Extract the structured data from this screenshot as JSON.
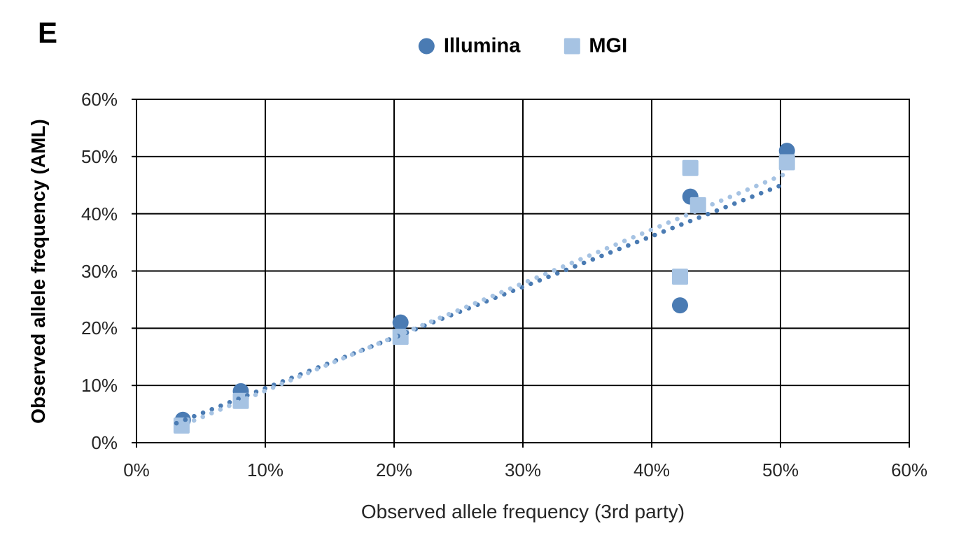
{
  "panel_label": "E",
  "colors": {
    "illumina": "#4a7bb3",
    "mgi": "#a6c3e3",
    "grid": "#000000",
    "tick_text": "#262626"
  },
  "legend": {
    "items": [
      {
        "label": "Illumina",
        "marker": "circle",
        "color": "#4a7bb3"
      },
      {
        "label": "MGI",
        "marker": "square",
        "color": "#a6c3e3"
      }
    ]
  },
  "chart_data": {
    "type": "scatter",
    "title": "",
    "xlabel": "Observed allele frequency (3rd party)",
    "ylabel": "Observed allele frequency (AML)",
    "xlim": [
      0,
      60
    ],
    "ylim": [
      0,
      60
    ],
    "xticks": [
      "0%",
      "10%",
      "20%",
      "30%",
      "40%",
      "50%",
      "60%"
    ],
    "yticks": [
      "0%",
      "10%",
      "20%",
      "30%",
      "40%",
      "50%",
      "60%"
    ],
    "grid": true,
    "legend_position": "top-center",
    "series": [
      {
        "name": "Illumina",
        "marker": "circle",
        "color": "#4a7bb3",
        "points": [
          {
            "x": 3.6,
            "y": 4.0
          },
          {
            "x": 8.1,
            "y": 9.0
          },
          {
            "x": 20.5,
            "y": 21.0
          },
          {
            "x": 42.2,
            "y": 24.0
          },
          {
            "x": 43.0,
            "y": 43.0
          },
          {
            "x": 50.5,
            "y": 51.0
          }
        ],
        "trendline": {
          "style": "dotted",
          "x1": 3.1,
          "y1": 3.4,
          "x2": 50.3,
          "y2": 45.2
        }
      },
      {
        "name": "MGI",
        "marker": "square",
        "color": "#a6c3e3",
        "points": [
          {
            "x": 3.5,
            "y": 3.0
          },
          {
            "x": 8.1,
            "y": 7.3
          },
          {
            "x": 20.5,
            "y": 18.5
          },
          {
            "x": 42.2,
            "y": 29.0
          },
          {
            "x": 43.0,
            "y": 48.0
          },
          {
            "x": 43.6,
            "y": 41.5
          },
          {
            "x": 50.5,
            "y": 49.0
          }
        ],
        "trendline": {
          "style": "dotted",
          "x1": 3.1,
          "y1": 2.6,
          "x2": 50.3,
          "y2": 46.9
        }
      }
    ]
  }
}
